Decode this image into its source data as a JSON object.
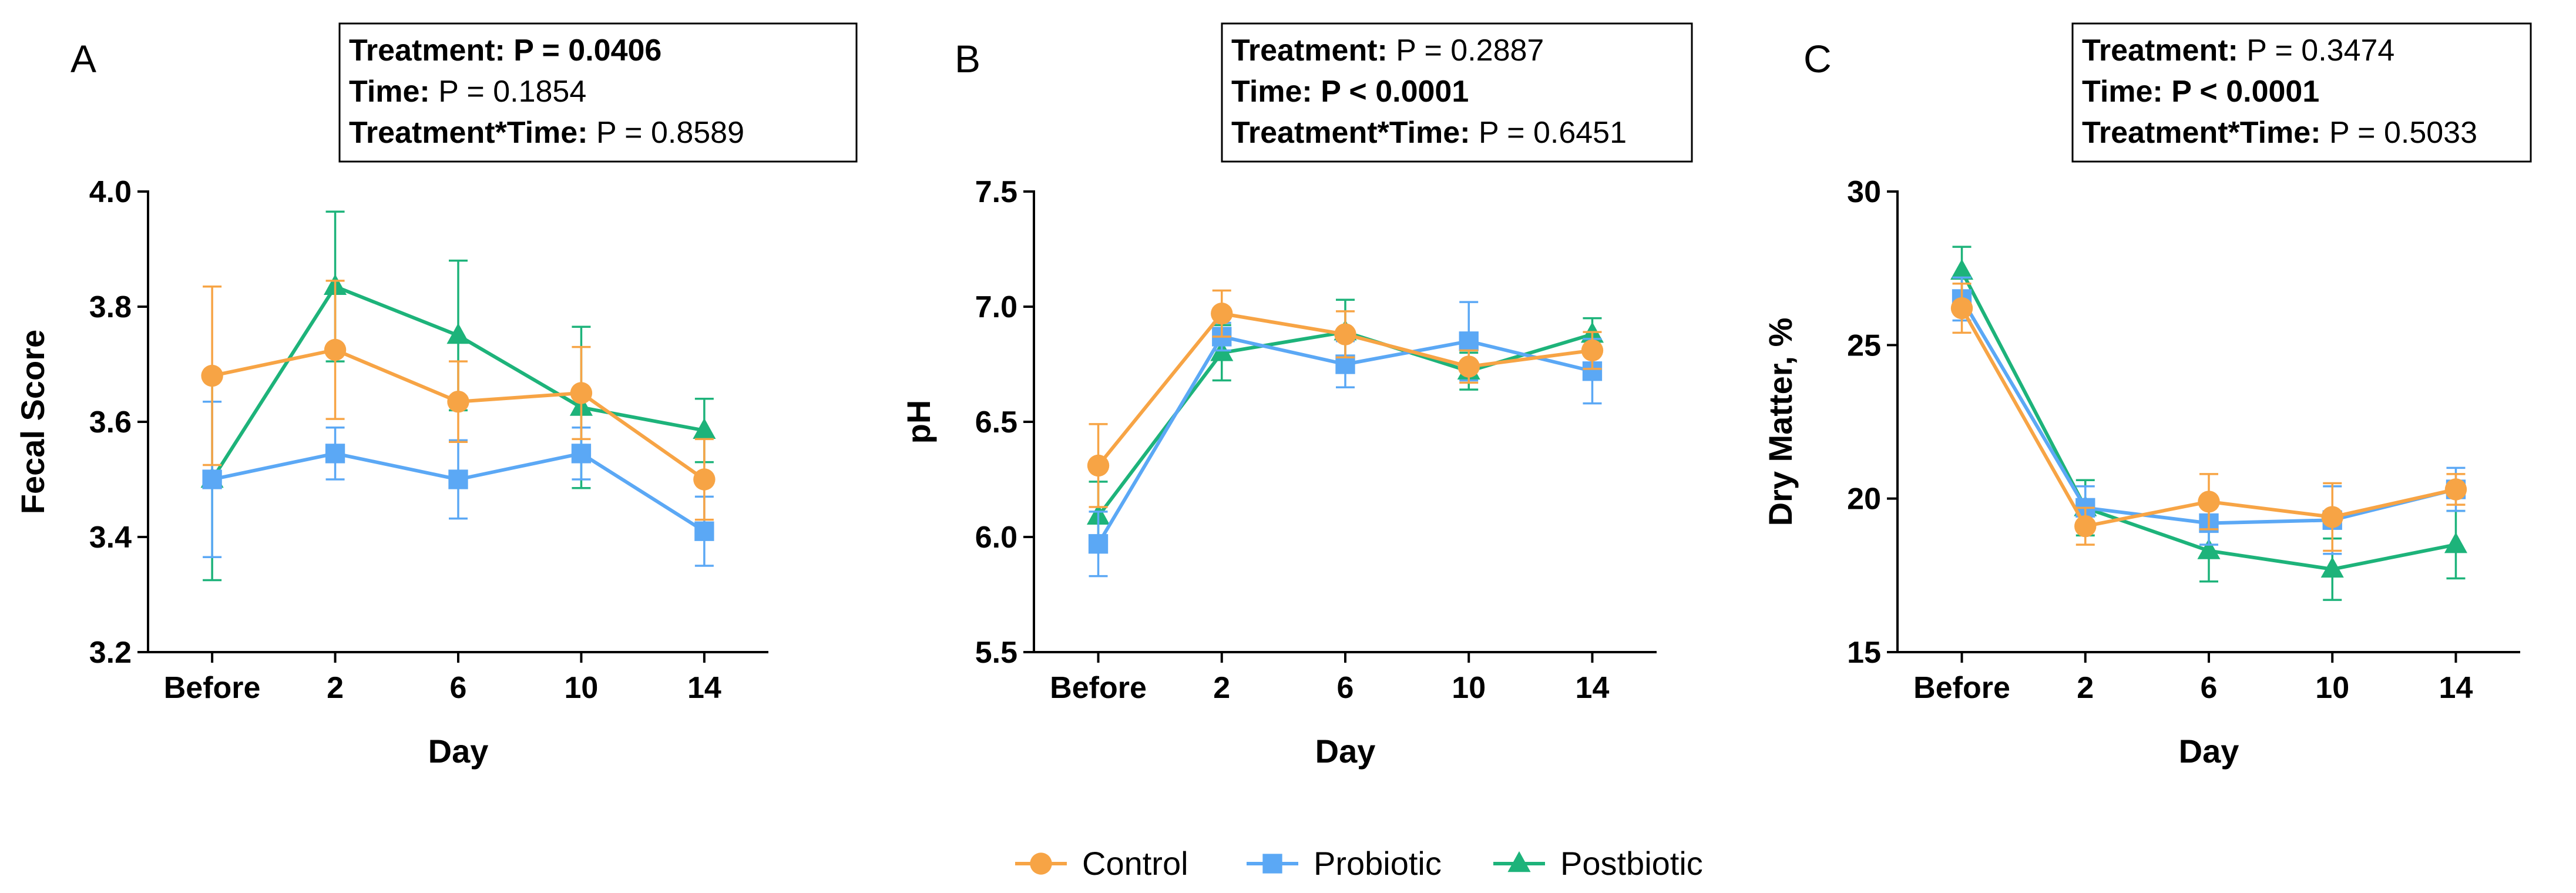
{
  "colors": {
    "Control": "#F7A445",
    "Probiotic": "#5BA8F5",
    "Postbiotic": "#1DB37A",
    "axis": "#000000"
  },
  "legend": {
    "items": [
      {
        "name": "Control",
        "marker": "circle"
      },
      {
        "name": "Probiotic",
        "marker": "square"
      },
      {
        "name": "Postbiotic",
        "marker": "triangle"
      }
    ]
  },
  "chart_data": [
    {
      "type": "line",
      "panel_label": "A",
      "xlabel": "Day",
      "ylabel": "Fecal  Score",
      "categories": [
        "Before",
        "2",
        "6",
        "10",
        "14"
      ],
      "ylim": [
        3.2,
        4.0
      ],
      "yticks": [
        3.2,
        3.4,
        3.6,
        3.8,
        4.0
      ],
      "ytick_labels": [
        "3.2",
        "3.4",
        "3.6",
        "3.8",
        "4.0"
      ],
      "stats": [
        {
          "label": "Treatment:",
          "value": "P = 0.0406",
          "value_bold": true
        },
        {
          "label": "Time:",
          "value": "P = 0.1854",
          "value_bold": false
        },
        {
          "label": "Treatment*Time:",
          "value": "P = 0.8589",
          "value_bold": false
        }
      ],
      "series": [
        {
          "name": "Control",
          "values": [
            3.68,
            3.725,
            3.635,
            3.65,
            3.5
          ],
          "err": [
            0.155,
            0.12,
            0.07,
            0.08,
            0.07
          ]
        },
        {
          "name": "Probiotic",
          "values": [
            3.5,
            3.545,
            3.5,
            3.545,
            3.41
          ],
          "err": [
            0.135,
            0.045,
            0.068,
            0.045,
            0.06
          ]
        },
        {
          "name": "Postbiotic",
          "values": [
            3.5,
            3.835,
            3.75,
            3.625,
            3.585
          ],
          "err": [
            0.175,
            0.13,
            0.13,
            0.14,
            0.055
          ]
        }
      ]
    },
    {
      "type": "line",
      "panel_label": "B",
      "xlabel": "Day",
      "ylabel": "pH",
      "categories": [
        "Before",
        "2",
        "6",
        "10",
        "14"
      ],
      "ylim": [
        5.5,
        7.5
      ],
      "yticks": [
        5.5,
        6.0,
        6.5,
        7.0,
        7.5
      ],
      "ytick_labels": [
        "5.5",
        "6.0",
        "6.5",
        "7.0",
        "7.5"
      ],
      "stats": [
        {
          "label": "Treatment:",
          "value": "P = 0.2887",
          "value_bold": false
        },
        {
          "label": "Time:",
          "value": "P < 0.0001",
          "value_bold": true
        },
        {
          "label": "Treatment*Time:",
          "value": "P = 0.6451",
          "value_bold": false
        }
      ],
      "series": [
        {
          "name": "Control",
          "values": [
            6.31,
            6.97,
            6.88,
            6.74,
            6.81
          ],
          "err": [
            0.18,
            0.1,
            0.1,
            0.07,
            0.08
          ]
        },
        {
          "name": "Probiotic",
          "values": [
            5.97,
            6.87,
            6.75,
            6.85,
            6.72
          ],
          "err": [
            0.14,
            0.06,
            0.1,
            0.17,
            0.14
          ]
        },
        {
          "name": "Postbiotic",
          "values": [
            6.09,
            6.8,
            6.89,
            6.72,
            6.88
          ],
          "err": [
            0.15,
            0.12,
            0.14,
            0.08,
            0.07
          ]
        }
      ]
    },
    {
      "type": "line",
      "panel_label": "C",
      "xlabel": "Day",
      "ylabel": "Dry Matter, %",
      "categories": [
        "Before",
        "2",
        "6",
        "10",
        "14"
      ],
      "ylim": [
        15,
        30
      ],
      "yticks": [
        15,
        20,
        25,
        30
      ],
      "ytick_labels": [
        "15",
        "20",
        "25",
        "30"
      ],
      "stats": [
        {
          "label": "Treatment:",
          "value": "P = 0.3474",
          "value_bold": false
        },
        {
          "label": "Time:",
          "value": "P < 0.0001",
          "value_bold": true
        },
        {
          "label": "Treatment*Time:",
          "value": "P = 0.5033",
          "value_bold": false
        }
      ],
      "series": [
        {
          "name": "Control",
          "values": [
            26.2,
            19.1,
            19.9,
            19.4,
            20.3
          ],
          "err": [
            0.8,
            0.6,
            0.9,
            1.1,
            0.5
          ]
        },
        {
          "name": "Probiotic",
          "values": [
            26.5,
            19.7,
            19.2,
            19.3,
            20.3
          ],
          "err": [
            0.7,
            0.7,
            0.7,
            1.1,
            0.7
          ]
        },
        {
          "name": "Postbiotic",
          "values": [
            27.4,
            19.7,
            18.3,
            17.7,
            18.5
          ],
          "err": [
            0.8,
            0.9,
            1.0,
            1.0,
            1.1
          ]
        }
      ]
    }
  ]
}
